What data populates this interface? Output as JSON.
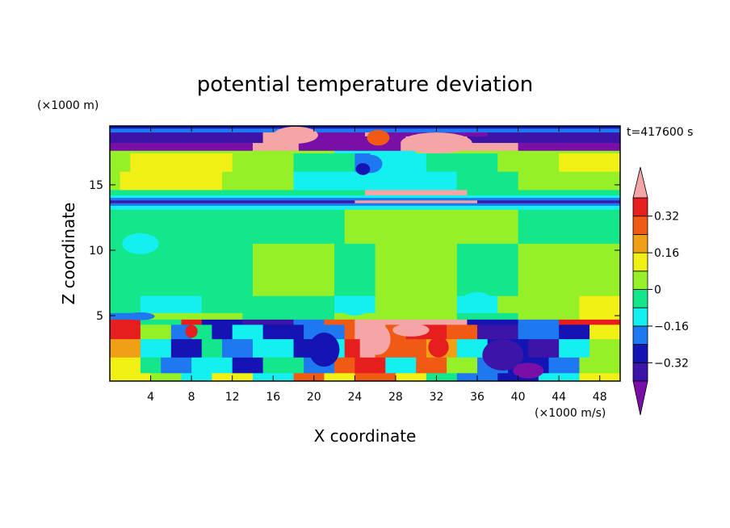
{
  "chart_data": {
    "type": "heatmap",
    "title": "potential temperature deviation",
    "xlabel": "X coordinate",
    "ylabel": "Z coordinate",
    "x_unit": "(×1000 m/s)",
    "y_unit": "(×1000 m)",
    "time_label": "t=417600 s",
    "xlim": [
      0,
      50
    ],
    "ylim": [
      0,
      19.5
    ],
    "x_ticks": [
      4,
      8,
      12,
      16,
      20,
      24,
      28,
      32,
      36,
      40,
      44,
      48
    ],
    "x_tick_labels": [
      "4",
      "8",
      "12",
      "16",
      "20",
      "24",
      "28",
      "32",
      "36",
      "40",
      "44",
      "48"
    ],
    "y_ticks": [
      5,
      10,
      15
    ],
    "y_tick_labels": [
      "5",
      "10",
      "15"
    ],
    "colorbar": {
      "levels": [
        -0.4,
        -0.32,
        -0.24,
        -0.16,
        -0.08,
        0,
        0.08,
        0.16,
        0.24,
        0.32,
        0.4
      ],
      "tick_values": [
        0.32,
        0.16,
        0,
        -0.16,
        -0.32
      ],
      "tick_labels": [
        "0.32",
        "0.16",
        "0",
        "−0.16",
        "−0.32"
      ],
      "colors": [
        "#7a0fa8",
        "#3c14a8",
        "#1414b4",
        "#1e78f0",
        "#14f0f0",
        "#14e68c",
        "#96f028",
        "#f0f014",
        "#f0a014",
        "#f05a14",
        "#e61e1e",
        "#f5a5a5"
      ],
      "under_color": "#7a0fa8",
      "over_color": "#f5a5a5"
    },
    "rows": [
      {
        "z0": 19.3,
        "z1": 19.5,
        "segments": [
          {
            "x0": 0,
            "x1": 50,
            "c": 2
          }
        ]
      },
      {
        "z0": 19.0,
        "z1": 19.3,
        "segments": [
          {
            "x0": 0,
            "x1": 50,
            "c": 3
          }
        ]
      },
      {
        "z0": 18.7,
        "z1": 19.0,
        "segments": [
          {
            "x0": 0,
            "x1": 15,
            "c": 1
          },
          {
            "x0": 15,
            "x1": 18,
            "c": 11
          },
          {
            "x0": 18,
            "x1": 25,
            "c": 0
          },
          {
            "x0": 25,
            "x1": 26.5,
            "c": 11
          },
          {
            "x0": 26.5,
            "x1": 37,
            "c": 0
          },
          {
            "x0": 37,
            "x1": 50,
            "c": 1
          }
        ]
      },
      {
        "z0": 18.2,
        "z1": 18.7,
        "segments": [
          {
            "x0": 0,
            "x1": 15,
            "c": 1
          },
          {
            "x0": 15,
            "x1": 18.5,
            "c": 11
          },
          {
            "x0": 18.5,
            "x1": 29,
            "c": 0
          },
          {
            "x0": 29,
            "x1": 35,
            "c": 11
          },
          {
            "x0": 35,
            "x1": 50,
            "c": 1
          }
        ]
      },
      {
        "z0": 17.6,
        "z1": 18.2,
        "segments": [
          {
            "x0": 0,
            "x1": 14,
            "c": 0
          },
          {
            "x0": 14,
            "x1": 18.5,
            "c": 11
          },
          {
            "x0": 18.5,
            "x1": 28.5,
            "c": 0
          },
          {
            "x0": 28.5,
            "x1": 40,
            "c": 11
          },
          {
            "x0": 40,
            "x1": 50,
            "c": 0
          }
        ]
      },
      {
        "z0": 17.4,
        "z1": 17.6,
        "segments": [
          {
            "x0": 0,
            "x1": 22,
            "c": 6
          },
          {
            "x0": 22,
            "x1": 30,
            "c": 4
          },
          {
            "x0": 30,
            "x1": 50,
            "c": 6
          }
        ]
      },
      {
        "z0": 16.0,
        "z1": 17.4,
        "segments": [
          {
            "x0": 0,
            "x1": 2,
            "c": 6
          },
          {
            "x0": 2,
            "x1": 12,
            "c": 7
          },
          {
            "x0": 12,
            "x1": 18,
            "c": 6
          },
          {
            "x0": 18,
            "x1": 24,
            "c": 5
          },
          {
            "x0": 24,
            "x1": 25.5,
            "c": 3
          },
          {
            "x0": 25.5,
            "x1": 31,
            "c": 4
          },
          {
            "x0": 31,
            "x1": 38,
            "c": 5
          },
          {
            "x0": 38,
            "x1": 44,
            "c": 6
          },
          {
            "x0": 44,
            "x1": 50,
            "c": 7
          }
        ]
      },
      {
        "z0": 14.6,
        "z1": 16.0,
        "segments": [
          {
            "x0": 0,
            "x1": 1,
            "c": 6
          },
          {
            "x0": 1,
            "x1": 11,
            "c": 7
          },
          {
            "x0": 11,
            "x1": 18,
            "c": 6
          },
          {
            "x0": 18,
            "x1": 34,
            "c": 4
          },
          {
            "x0": 34,
            "x1": 40,
            "c": 5
          },
          {
            "x0": 40,
            "x1": 50,
            "c": 6
          }
        ]
      },
      {
        "z0": 14.2,
        "z1": 14.6,
        "segments": [
          {
            "x0": 0,
            "x1": 25,
            "c": 5
          },
          {
            "x0": 25,
            "x1": 35,
            "c": 11
          },
          {
            "x0": 35,
            "x1": 50,
            "c": 5
          }
        ]
      },
      {
        "z0": 14.0,
        "z1": 14.2,
        "segments": [
          {
            "x0": 0,
            "x1": 50,
            "c": 4
          }
        ]
      },
      {
        "z0": 13.8,
        "z1": 14.0,
        "segments": [
          {
            "x0": 0,
            "x1": 50,
            "c": 3
          }
        ]
      },
      {
        "z0": 13.6,
        "z1": 13.8,
        "segments": [
          {
            "x0": 0,
            "x1": 24,
            "c": 1
          },
          {
            "x0": 24,
            "x1": 36,
            "c": 11
          },
          {
            "x0": 36,
            "x1": 50,
            "c": 1
          }
        ]
      },
      {
        "z0": 13.4,
        "z1": 13.6,
        "segments": [
          {
            "x0": 0,
            "x1": 50,
            "c": 3
          }
        ]
      },
      {
        "z0": 13.1,
        "z1": 13.4,
        "segments": [
          {
            "x0": 0,
            "x1": 50,
            "c": 4
          }
        ]
      },
      {
        "z0": 10.5,
        "z1": 13.1,
        "segments": [
          {
            "x0": 0,
            "x1": 23,
            "c": 5
          },
          {
            "x0": 23,
            "x1": 40,
            "c": 6
          },
          {
            "x0": 40,
            "x1": 50,
            "c": 5
          }
        ]
      },
      {
        "z0": 6.5,
        "z1": 10.5,
        "segments": [
          {
            "x0": 0,
            "x1": 14,
            "c": 5
          },
          {
            "x0": 14,
            "x1": 22,
            "c": 6
          },
          {
            "x0": 22,
            "x1": 26,
            "c": 5
          },
          {
            "x0": 26,
            "x1": 34,
            "c": 6
          },
          {
            "x0": 34,
            "x1": 40,
            "c": 5
          },
          {
            "x0": 40,
            "x1": 50,
            "c": 6
          }
        ]
      },
      {
        "z0": 5.2,
        "z1": 6.5,
        "segments": [
          {
            "x0": 0,
            "x1": 3,
            "c": 5
          },
          {
            "x0": 3,
            "x1": 9,
            "c": 4
          },
          {
            "x0": 9,
            "x1": 22,
            "c": 5
          },
          {
            "x0": 22,
            "x1": 26,
            "c": 4
          },
          {
            "x0": 26,
            "x1": 34,
            "c": 6
          },
          {
            "x0": 34,
            "x1": 38,
            "c": 4
          },
          {
            "x0": 38,
            "x1": 46,
            "c": 6
          },
          {
            "x0": 46,
            "x1": 50,
            "c": 7
          }
        ]
      },
      {
        "z0": 4.7,
        "z1": 5.2,
        "segments": [
          {
            "x0": 0,
            "x1": 3,
            "c": 3
          },
          {
            "x0": 3,
            "x1": 13,
            "c": 6
          },
          {
            "x0": 13,
            "x1": 22,
            "c": 5
          },
          {
            "x0": 22,
            "x1": 28,
            "c": 6
          },
          {
            "x0": 28,
            "x1": 34,
            "c": 6
          },
          {
            "x0": 34,
            "x1": 40,
            "c": 5
          },
          {
            "x0": 40,
            "x1": 46,
            "c": 6
          },
          {
            "x0": 46,
            "x1": 50,
            "c": 7
          }
        ]
      },
      {
        "z0": 4.3,
        "z1": 4.7,
        "segments": [
          {
            "x0": 0,
            "x1": 3,
            "c": 10
          },
          {
            "x0": 3,
            "x1": 7,
            "c": 5
          },
          {
            "x0": 7,
            "x1": 9,
            "c": 10
          },
          {
            "x0": 9,
            "x1": 13,
            "c": 2
          },
          {
            "x0": 13,
            "x1": 18,
            "c": 1
          },
          {
            "x0": 18,
            "x1": 21,
            "c": 3
          },
          {
            "x0": 21,
            "x1": 24,
            "c": 9
          },
          {
            "x0": 24,
            "x1": 28,
            "c": 11
          },
          {
            "x0": 28,
            "x1": 35,
            "c": 11
          },
          {
            "x0": 35,
            "x1": 40,
            "c": 2
          },
          {
            "x0": 40,
            "x1": 44,
            "c": 3
          },
          {
            "x0": 44,
            "x1": 50,
            "c": 10
          }
        ]
      },
      {
        "z0": 3.2,
        "z1": 4.3,
        "segments": [
          {
            "x0": 0,
            "x1": 3,
            "c": 10
          },
          {
            "x0": 3,
            "x1": 6,
            "c": 6
          },
          {
            "x0": 6,
            "x1": 8,
            "c": 3
          },
          {
            "x0": 8,
            "x1": 10,
            "c": 5
          },
          {
            "x0": 10,
            "x1": 12,
            "c": 2
          },
          {
            "x0": 12,
            "x1": 15,
            "c": 4
          },
          {
            "x0": 15,
            "x1": 19,
            "c": 2
          },
          {
            "x0": 19,
            "x1": 23,
            "c": 3
          },
          {
            "x0": 23,
            "x1": 24,
            "c": 9
          },
          {
            "x0": 24,
            "x1": 27,
            "c": 11
          },
          {
            "x0": 27,
            "x1": 29,
            "c": 9
          },
          {
            "x0": 29,
            "x1": 33,
            "c": 10
          },
          {
            "x0": 33,
            "x1": 36,
            "c": 9
          },
          {
            "x0": 36,
            "x1": 40,
            "c": 1
          },
          {
            "x0": 40,
            "x1": 44,
            "c": 3
          },
          {
            "x0": 44,
            "x1": 47,
            "c": 2
          },
          {
            "x0": 47,
            "x1": 50,
            "c": 7
          }
        ]
      },
      {
        "z0": 1.8,
        "z1": 3.2,
        "segments": [
          {
            "x0": 0,
            "x1": 3,
            "c": 8
          },
          {
            "x0": 3,
            "x1": 6,
            "c": 4
          },
          {
            "x0": 6,
            "x1": 9,
            "c": 2
          },
          {
            "x0": 9,
            "x1": 11,
            "c": 5
          },
          {
            "x0": 11,
            "x1": 14,
            "c": 3
          },
          {
            "x0": 14,
            "x1": 18,
            "c": 4
          },
          {
            "x0": 18,
            "x1": 20,
            "c": 2
          },
          {
            "x0": 20,
            "x1": 23,
            "c": 4
          },
          {
            "x0": 23,
            "x1": 24.5,
            "c": 10
          },
          {
            "x0": 24.5,
            "x1": 26,
            "c": 11
          },
          {
            "x0": 26,
            "x1": 31,
            "c": 9
          },
          {
            "x0": 31,
            "x1": 34,
            "c": 8
          },
          {
            "x0": 34,
            "x1": 37,
            "c": 4
          },
          {
            "x0": 37,
            "x1": 41,
            "c": 2
          },
          {
            "x0": 41,
            "x1": 44,
            "c": 1
          },
          {
            "x0": 44,
            "x1": 47,
            "c": 4
          },
          {
            "x0": 47,
            "x1": 50,
            "c": 6
          }
        ]
      },
      {
        "z0": 0.6,
        "z1": 1.8,
        "segments": [
          {
            "x0": 0,
            "x1": 3,
            "c": 7
          },
          {
            "x0": 3,
            "x1": 5,
            "c": 5
          },
          {
            "x0": 5,
            "x1": 8,
            "c": 3
          },
          {
            "x0": 8,
            "x1": 12,
            "c": 4
          },
          {
            "x0": 12,
            "x1": 15,
            "c": 2
          },
          {
            "x0": 15,
            "x1": 19,
            "c": 5
          },
          {
            "x0": 19,
            "x1": 22,
            "c": 3
          },
          {
            "x0": 22,
            "x1": 24,
            "c": 9
          },
          {
            "x0": 24,
            "x1": 27,
            "c": 10
          },
          {
            "x0": 27,
            "x1": 30,
            "c": 4
          },
          {
            "x0": 30,
            "x1": 33,
            "c": 9
          },
          {
            "x0": 33,
            "x1": 36,
            "c": 6
          },
          {
            "x0": 36,
            "x1": 39,
            "c": 3
          },
          {
            "x0": 39,
            "x1": 43,
            "c": 2
          },
          {
            "x0": 43,
            "x1": 46,
            "c": 3
          },
          {
            "x0": 46,
            "x1": 50,
            "c": 6
          }
        ]
      },
      {
        "z0": 0.0,
        "z1": 0.6,
        "segments": [
          {
            "x0": 0,
            "x1": 4,
            "c": 7
          },
          {
            "x0": 4,
            "x1": 7,
            "c": 6
          },
          {
            "x0": 7,
            "x1": 10,
            "c": 4
          },
          {
            "x0": 10,
            "x1": 14,
            "c": 7
          },
          {
            "x0": 14,
            "x1": 18,
            "c": 4
          },
          {
            "x0": 18,
            "x1": 21,
            "c": 9
          },
          {
            "x0": 21,
            "x1": 24,
            "c": 7
          },
          {
            "x0": 24,
            "x1": 28,
            "c": 9
          },
          {
            "x0": 28,
            "x1": 31,
            "c": 7
          },
          {
            "x0": 31,
            "x1": 34,
            "c": 5
          },
          {
            "x0": 34,
            "x1": 38,
            "c": 3
          },
          {
            "x0": 38,
            "x1": 42,
            "c": 2
          },
          {
            "x0": 42,
            "x1": 46,
            "c": 4
          },
          {
            "x0": 46,
            "x1": 50,
            "c": 7
          }
        ]
      }
    ],
    "blobs": [
      {
        "cx": 18.2,
        "cz": 18.8,
        "rx": 2.2,
        "rz": 0.65,
        "c": 11
      },
      {
        "cx": 26.3,
        "cz": 18.6,
        "rx": 1.1,
        "rz": 0.6,
        "c": 9
      },
      {
        "cx": 32.0,
        "cz": 18.2,
        "rx": 3.5,
        "rz": 0.8,
        "c": 11
      },
      {
        "cx": 25.5,
        "cz": 16.6,
        "rx": 1.2,
        "rz": 0.7,
        "c": 3
      },
      {
        "cx": 24.8,
        "cz": 16.2,
        "rx": 0.7,
        "rz": 0.45,
        "c": 2
      },
      {
        "cx": 3.0,
        "cz": 4.95,
        "rx": 1.4,
        "rz": 0.3,
        "c": 3
      },
      {
        "cx": 26.2,
        "cz": 3.2,
        "rx": 1.3,
        "rz": 1.2,
        "c": 11
      },
      {
        "cx": 29.5,
        "cz": 3.9,
        "rx": 1.8,
        "rz": 0.5,
        "c": 11
      },
      {
        "cx": 32.2,
        "cz": 2.6,
        "rx": 1.0,
        "rz": 0.8,
        "c": 10
      },
      {
        "cx": 38.5,
        "cz": 2.0,
        "rx": 2.0,
        "rz": 1.2,
        "c": 1
      },
      {
        "cx": 21.0,
        "cz": 2.4,
        "rx": 1.5,
        "rz": 1.3,
        "c": 2
      },
      {
        "cx": 8.0,
        "cz": 3.8,
        "rx": 0.6,
        "rz": 0.5,
        "c": 10
      },
      {
        "cx": 41.0,
        "cz": 0.8,
        "rx": 1.5,
        "rz": 0.6,
        "c": 0
      },
      {
        "cx": 3.0,
        "cz": 10.5,
        "rx": 1.8,
        "rz": 0.8,
        "c": 4
      },
      {
        "cx": 24.0,
        "cz": 5.7,
        "rx": 1.5,
        "rz": 0.7,
        "c": 4
      },
      {
        "cx": 36.0,
        "cz": 6.0,
        "rx": 1.6,
        "rz": 0.8,
        "c": 4
      }
    ]
  }
}
